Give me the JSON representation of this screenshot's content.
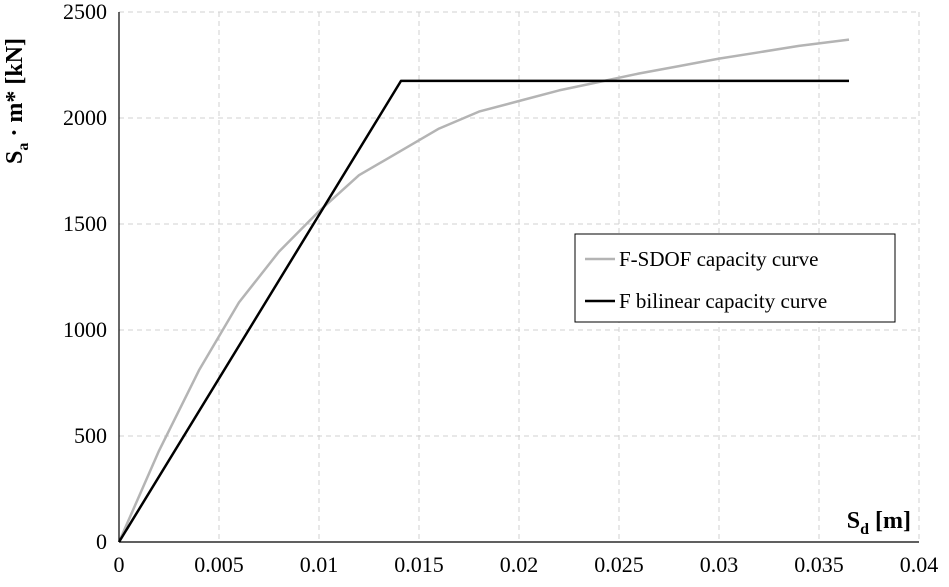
{
  "chart_data": {
    "type": "line",
    "xlabel": {
      "main": "S",
      "sub": "d",
      "rest": " [m]"
    },
    "ylabel": {
      "main": "S",
      "sub": "a",
      "rest": " · m* [kN]"
    },
    "xlim": [
      0,
      0.04
    ],
    "ylim": [
      0,
      2500
    ],
    "x_ticks": [
      0,
      0.005,
      0.01,
      0.015,
      0.02,
      0.025,
      0.03,
      0.035,
      0.04
    ],
    "x_tick_labels": [
      "0",
      "0.005",
      "0.01",
      "0.015",
      "0.02",
      "0.025",
      "0.03",
      "0.035",
      "0.04"
    ],
    "y_ticks": [
      0,
      500,
      1000,
      1500,
      2000,
      2500
    ],
    "y_tick_labels": [
      "0",
      "500",
      "1000",
      "1500",
      "2000",
      "2500"
    ],
    "grid": true,
    "legend_position": "center-right",
    "series": [
      {
        "name": "F-SDOF capacity curve",
        "color": "#b4b4b4",
        "x": [
          0,
          0.002,
          0.004,
          0.006,
          0.008,
          0.01,
          0.012,
          0.014,
          0.016,
          0.018,
          0.02,
          0.022,
          0.024,
          0.026,
          0.028,
          0.03,
          0.032,
          0.034,
          0.0365
        ],
        "y": [
          0,
          430,
          810,
          1130,
          1370,
          1560,
          1730,
          1840,
          1950,
          2030,
          2080,
          2130,
          2170,
          2210,
          2245,
          2280,
          2310,
          2340,
          2370
        ]
      },
      {
        "name": "F bilinear capacity curve",
        "color": "#000000",
        "x": [
          0,
          0.0141,
          0.0365
        ],
        "y": [
          0,
          2175,
          2175
        ]
      }
    ]
  }
}
